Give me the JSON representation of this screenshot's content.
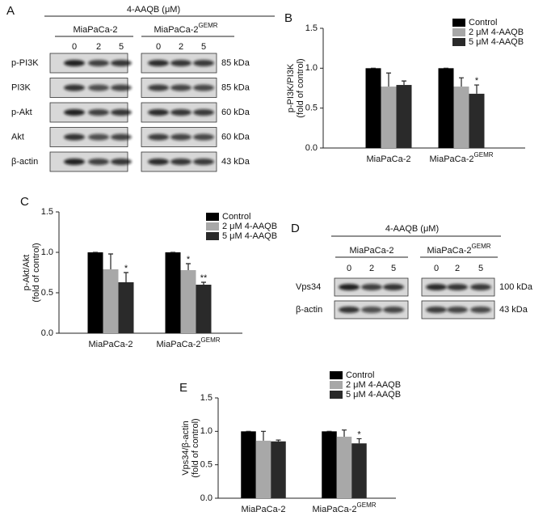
{
  "blots": [
    {
      "panel": "A",
      "title": "4-AAQB (μM)",
      "groups": [
        {
          "text": "MiaPaCa-2"
        },
        {
          "text": "MiaPaCa-2",
          "sup": "GEMR"
        }
      ],
      "lanes": [
        0,
        2,
        5
      ],
      "rows": [
        {
          "label": "p-PI3K",
          "size": "85 kDa"
        },
        {
          "label": "PI3K",
          "size": "85 kDa"
        },
        {
          "label": "p-Akt",
          "size": "60 kDa"
        },
        {
          "label": "Akt",
          "size": "60 kDa"
        },
        {
          "label": "β-actin",
          "size": "43 kDa"
        }
      ]
    },
    {
      "panel": "D",
      "title": "4-AAQB (μM)",
      "groups": [
        {
          "text": "MiaPaCa-2"
        },
        {
          "text": "MiaPaCa-2",
          "sup": "GEMR"
        }
      ],
      "lanes": [
        0,
        2,
        5
      ],
      "rows": [
        {
          "label": "Vps34",
          "size": "100 kDa"
        },
        {
          "label": "β-actin",
          "size": "43 kDa"
        }
      ]
    }
  ],
  "chart_data": [
    {
      "type": "bar",
      "panel": "B",
      "ylabel": [
        "p-PI3K/PI3K",
        "(fold of control)"
      ],
      "categories": [
        {
          "text": "MiaPaCa-2"
        },
        {
          "text": "MiaPaCa-2",
          "sup": "GEMR"
        }
      ],
      "ylim": [
        0,
        1.5
      ],
      "yticks": [
        {
          "value": 0,
          "label": "0.0"
        },
        0.5,
        {
          "value": 1,
          "label": "1.0"
        },
        1.5
      ],
      "legend": "upper right",
      "series": [
        {
          "name": "Control",
          "color": "#000000",
          "values": [
            1,
            1
          ],
          "errors": [
            0,
            0
          ],
          "significance": [
            null,
            null
          ]
        },
        {
          "name": "2 μM 4-AAQB",
          "color": "#a8a8a8",
          "values": [
            0.77,
            0.77
          ],
          "errors": [
            0.17,
            0.11
          ],
          "significance": [
            null,
            null
          ]
        },
        {
          "name": "5 μM 4-AAQB",
          "color": "#2a2a2a",
          "values": [
            0.79,
            0.68
          ],
          "errors": [
            0.05,
            0.11
          ],
          "significance": [
            null,
            "*"
          ]
        }
      ]
    },
    {
      "type": "bar",
      "panel": "C",
      "ylabel": [
        "p-Akt/Akt",
        "(fold of control)"
      ],
      "categories": [
        {
          "text": "MiaPaCa-2"
        },
        {
          "text": "MiaPaCa-2",
          "sup": "GEMR"
        }
      ],
      "ylim": [
        0,
        1.5
      ],
      "yticks": [
        {
          "value": 0,
          "label": "0.0"
        },
        0.5,
        {
          "value": 1,
          "label": "1.0"
        },
        1.5
      ],
      "legend": "upper right",
      "series": [
        {
          "name": "Control",
          "color": "#000000",
          "values": [
            1,
            1
          ],
          "errors": [
            0,
            0
          ],
          "significance": [
            null,
            null
          ]
        },
        {
          "name": "2 μM 4-AAQB",
          "color": "#a8a8a8",
          "values": [
            0.79,
            0.78
          ],
          "errors": [
            0.19,
            0.08
          ],
          "significance": [
            null,
            "*"
          ]
        },
        {
          "name": "5 μM 4-AAQB",
          "color": "#2a2a2a",
          "values": [
            0.63,
            0.6
          ],
          "errors": [
            0.12,
            0.03
          ],
          "significance": [
            "*",
            "**"
          ]
        }
      ]
    },
    {
      "type": "bar",
      "panel": "E",
      "ylabel": [
        "Vps34/β-actin",
        "(fold of control)"
      ],
      "categories": [
        {
          "text": "MiaPaCa-2"
        },
        {
          "text": "MiaPaCa-2",
          "sup": "GEMR"
        }
      ],
      "ylim": [
        0,
        1.5
      ],
      "yticks": [
        {
          "value": 0,
          "label": "0.0"
        },
        0.5,
        {
          "value": 1,
          "label": "1.0"
        },
        1.5
      ],
      "legend": "upper right",
      "series": [
        {
          "name": "Control",
          "color": "#000000",
          "values": [
            1,
            1
          ],
          "errors": [
            0,
            0
          ],
          "significance": [
            null,
            null
          ]
        },
        {
          "name": "2 μM 4-AAQB",
          "color": "#a8a8a8",
          "values": [
            0.86,
            0.92
          ],
          "errors": [
            0.14,
            0.1
          ],
          "significance": [
            null,
            null
          ]
        },
        {
          "name": "5 μM 4-AAQB",
          "color": "#2a2a2a",
          "values": [
            0.85,
            0.82
          ],
          "errors": [
            0.02,
            0.07
          ],
          "significance": [
            null,
            "*"
          ]
        }
      ]
    }
  ]
}
